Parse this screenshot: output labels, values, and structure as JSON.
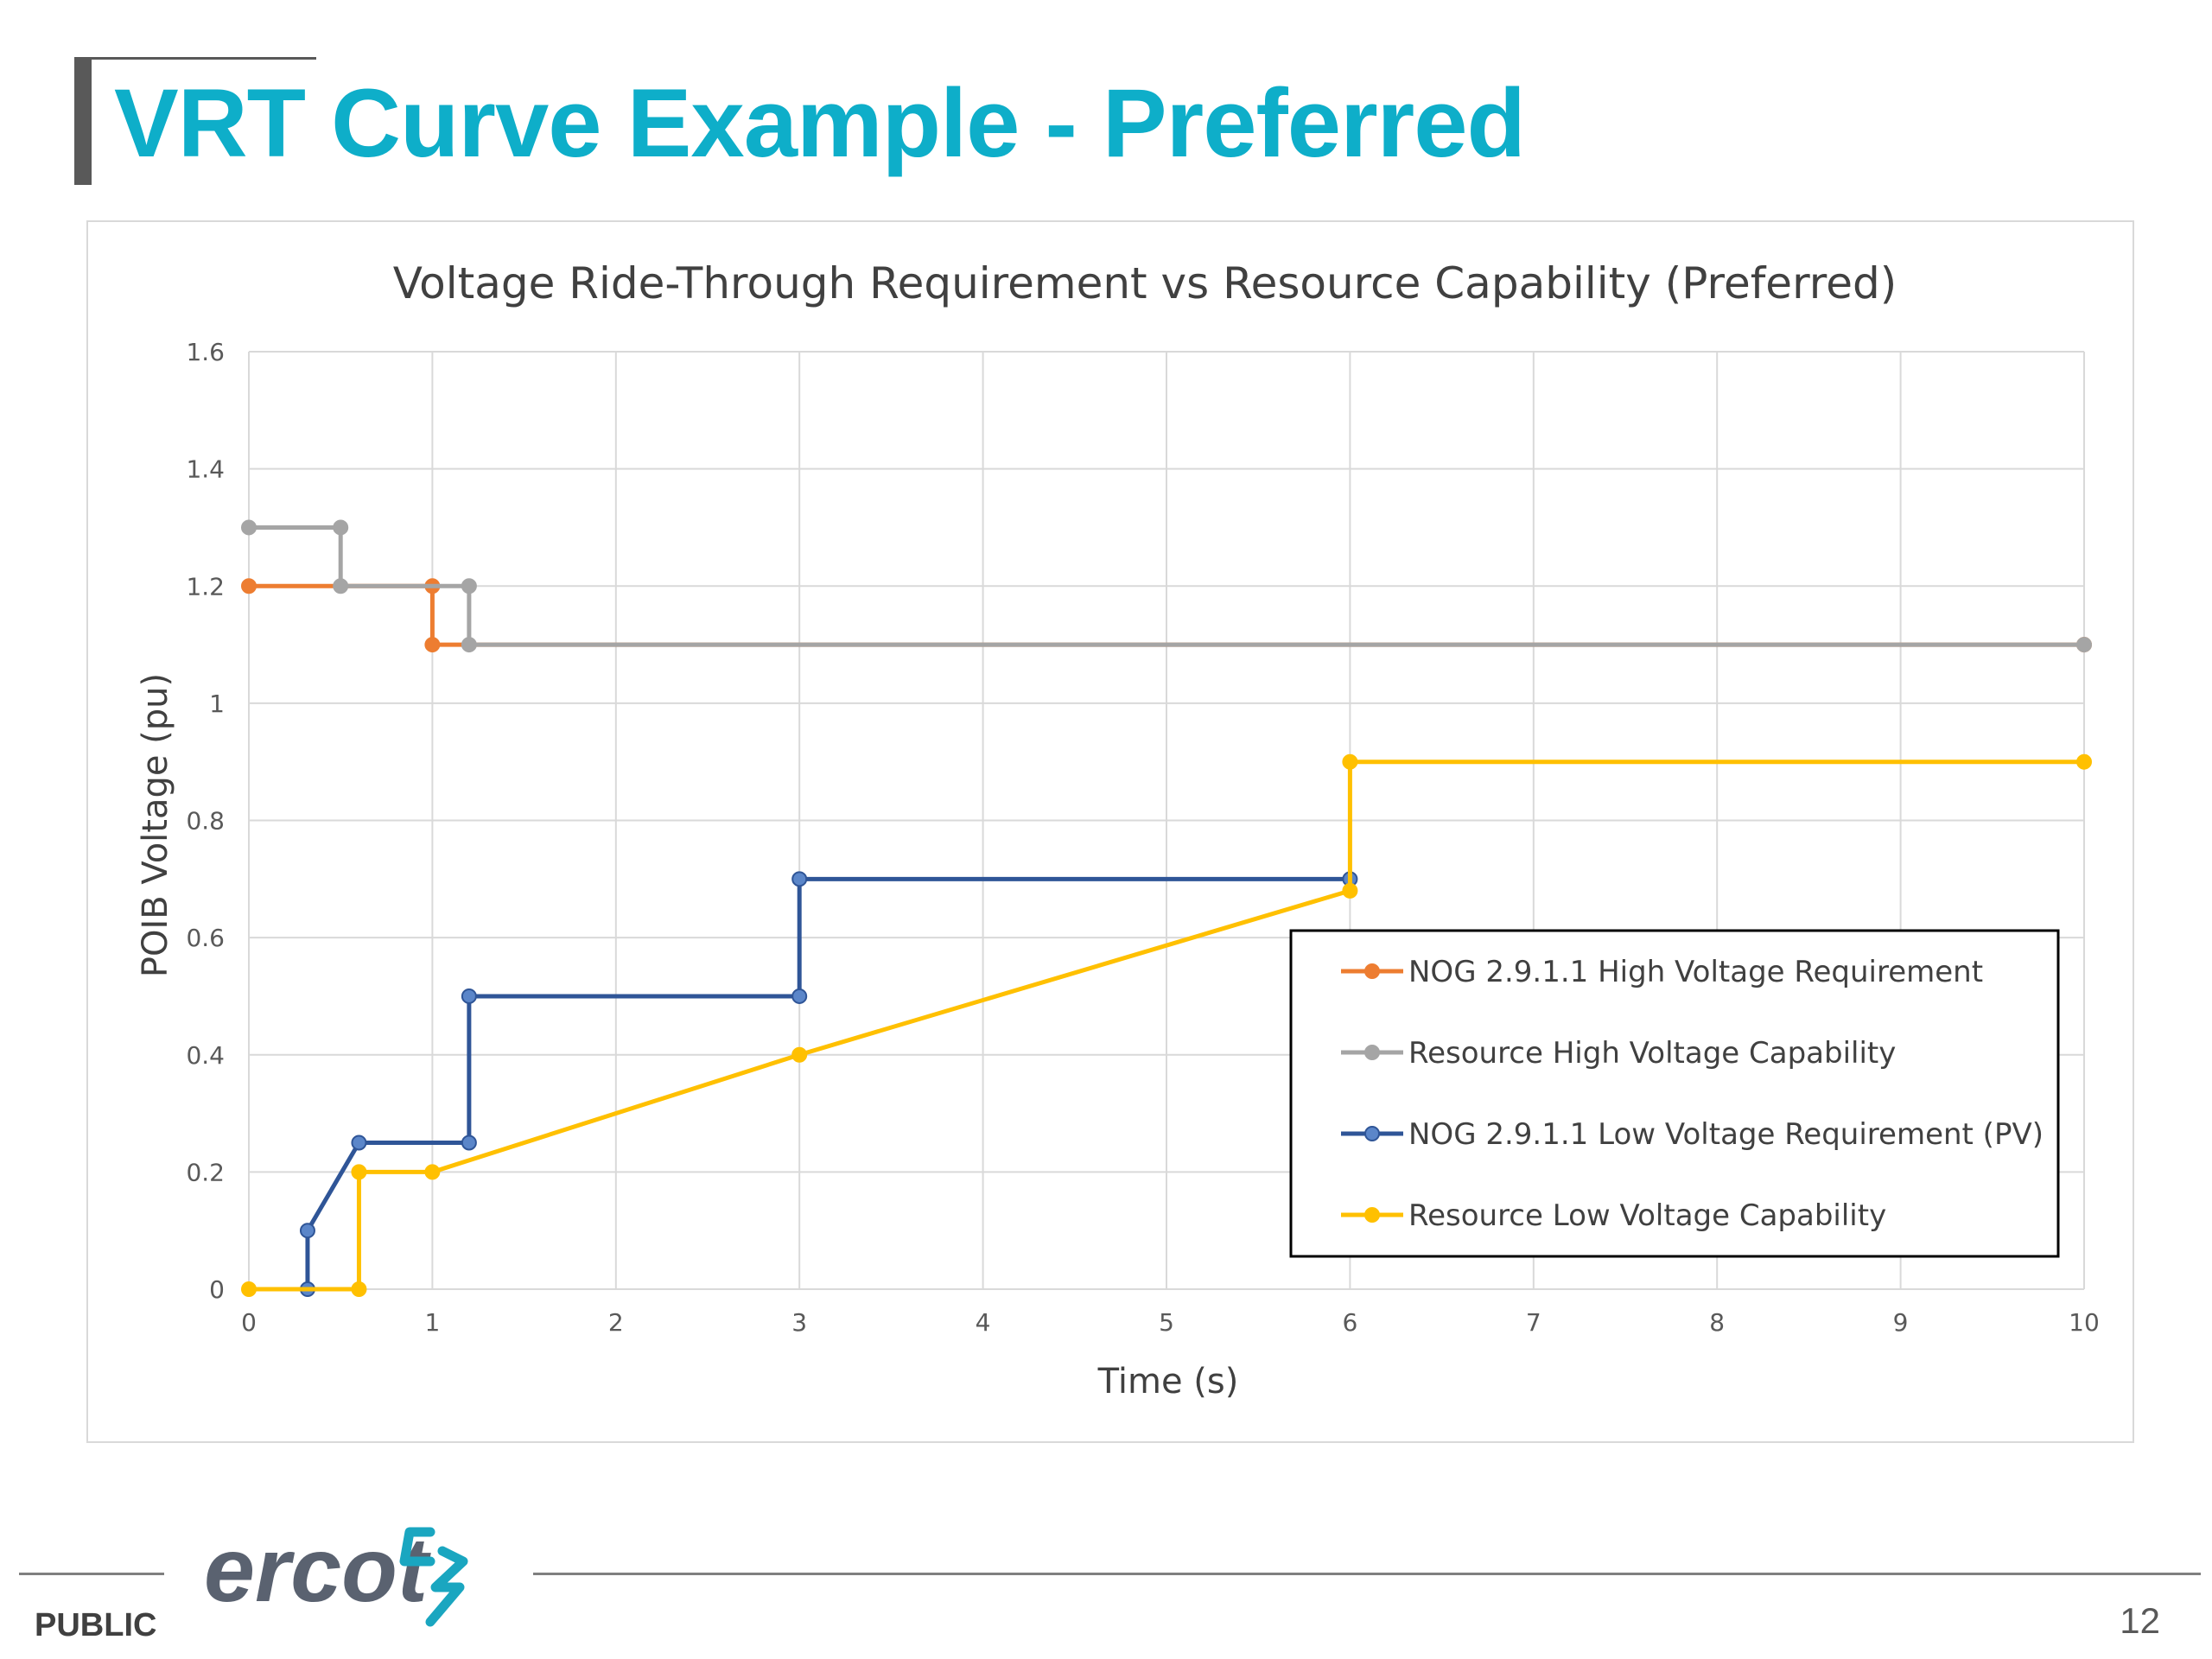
{
  "slide": {
    "title": "VRT Curve Example - Preferred",
    "footer_label": "PUBLIC",
    "page_number": "12",
    "logo_text": "ercot"
  },
  "colors": {
    "title": "#0eaec9",
    "orange": "#ed7d31",
    "gray": "#a5a5a5",
    "blue": "#2f5597",
    "yellow": "#ffc000",
    "grid": "#d9d9d9"
  },
  "icons": [
    "ercot-logo-icon"
  ],
  "chart_data": {
    "type": "line",
    "title": "Voltage Ride-Through Requirement vs Resource Capability (Preferred)",
    "xlabel": "Time (s)",
    "ylabel": "POIB Voltage (pu)",
    "xlim": [
      0,
      10
    ],
    "ylim": [
      0,
      1.6
    ],
    "x_ticks": [
      "0",
      "1",
      "2",
      "3",
      "4",
      "5",
      "6",
      "7",
      "8",
      "9",
      "10"
    ],
    "y_ticks": [
      "0",
      "0.2",
      "0.4",
      "0.6",
      "0.8",
      "1",
      "1.2",
      "1.4",
      "1.6"
    ],
    "grid": true,
    "legend_position": "bottom-right",
    "series": [
      {
        "name": "NOG 2.9.1.1 High Voltage Requirement",
        "color": "#ed7d31",
        "points": [
          [
            0,
            1.2
          ],
          [
            1,
            1.2
          ],
          [
            1,
            1.1
          ],
          [
            10,
            1.1
          ]
        ]
      },
      {
        "name": "Resource High Voltage Capability",
        "color": "#a5a5a5",
        "points": [
          [
            0,
            1.3
          ],
          [
            0.5,
            1.3
          ],
          [
            0.5,
            1.2
          ],
          [
            1.2,
            1.2
          ],
          [
            1.2,
            1.1
          ],
          [
            10,
            1.1
          ]
        ]
      },
      {
        "name": "NOG 2.9.1.1 Low Voltage Requirement (PV)",
        "color": "#2f5597",
        "points": [
          [
            0.32,
            0
          ],
          [
            0.32,
            0.1
          ],
          [
            0.6,
            0.25
          ],
          [
            1.2,
            0.25
          ],
          [
            1.2,
            0.5
          ],
          [
            3,
            0.5
          ],
          [
            3,
            0.7
          ],
          [
            6,
            0.7
          ]
        ]
      },
      {
        "name": "Resource Low Voltage Capability",
        "color": "#ffc000",
        "points": [
          [
            0,
            0
          ],
          [
            0.6,
            0
          ],
          [
            0.6,
            0.2
          ],
          [
            1,
            0.2
          ],
          [
            3,
            0.4
          ],
          [
            6,
            0.68
          ],
          [
            6,
            0.9
          ],
          [
            10,
            0.9
          ]
        ]
      }
    ]
  }
}
